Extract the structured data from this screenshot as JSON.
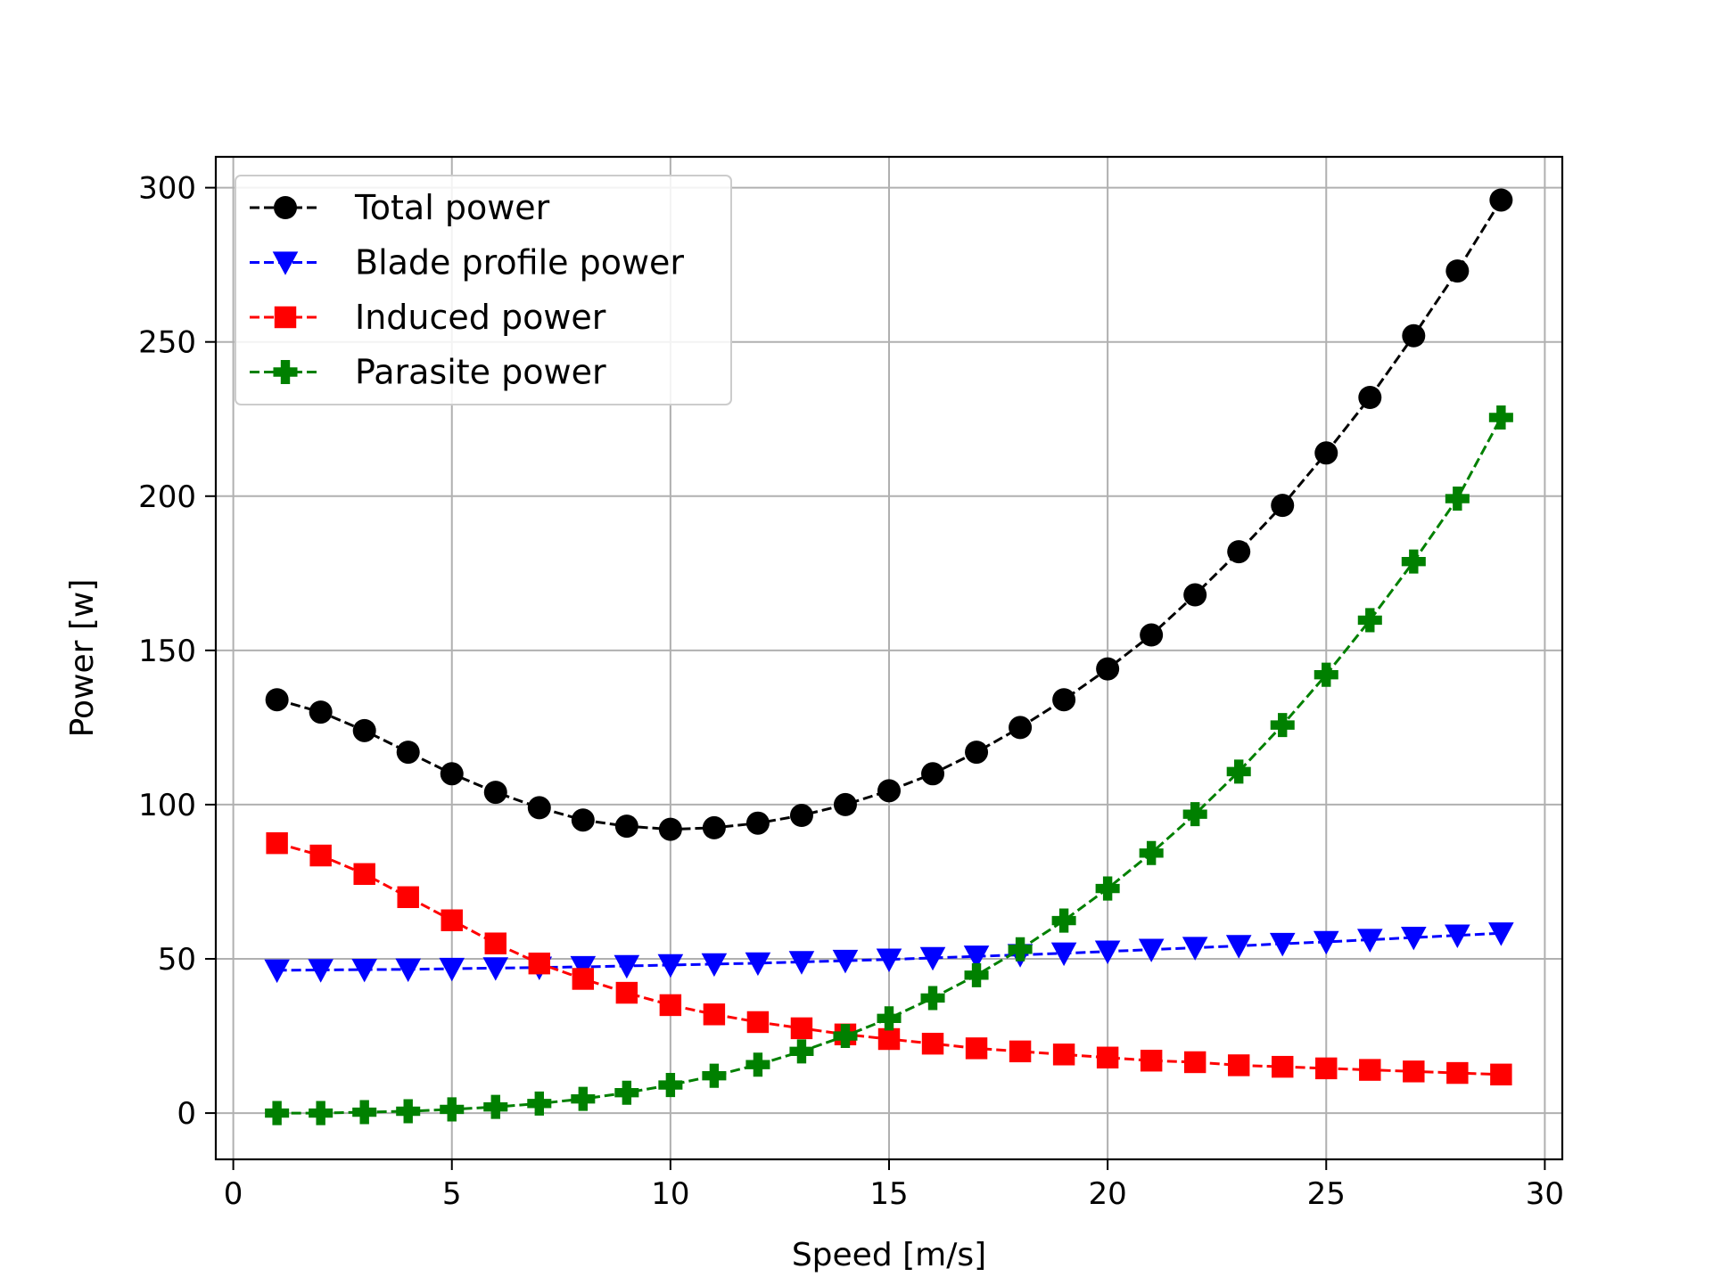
{
  "chart_data": {
    "type": "line",
    "title": "",
    "xlabel": "Speed [m/s]",
    "ylabel": "Power [w]",
    "xlim": [
      -0.4,
      30.4
    ],
    "ylim": [
      -15,
      310
    ],
    "xticks": [
      0,
      5,
      10,
      15,
      20,
      25,
      30
    ],
    "yticks": [
      0,
      50,
      100,
      150,
      200,
      250,
      300
    ],
    "grid": true,
    "legend_position": "top-left",
    "x": [
      1,
      2,
      3,
      4,
      5,
      6,
      7,
      8,
      9,
      10,
      11,
      12,
      13,
      14,
      15,
      16,
      17,
      18,
      19,
      20,
      21,
      22,
      23,
      24,
      25,
      26,
      27,
      28,
      29
    ],
    "series": [
      {
        "name": "Total power",
        "color": "#000000",
        "marker": "circle",
        "values": [
          134,
          130,
          124,
          117,
          110,
          104,
          99,
          95,
          93,
          92,
          92.5,
          94,
          96.5,
          100,
          104.5,
          110,
          117,
          125,
          134,
          144,
          155,
          168,
          182,
          197,
          214,
          232,
          252,
          273,
          296
        ]
      },
      {
        "name": "Blade profile power",
        "color": "#0000ff",
        "marker": "triangle-down",
        "values": [
          46.3,
          46.4,
          46.5,
          46.6,
          46.8,
          47,
          47.2,
          47.4,
          47.7,
          48,
          48.3,
          48.6,
          49,
          49.4,
          49.8,
          50.3,
          50.8,
          51.3,
          51.8,
          52.4,
          53,
          53.6,
          54.2,
          54.9,
          55.5,
          56.2,
          56.9,
          57.6,
          58.3
        ]
      },
      {
        "name": "Induced power",
        "color": "#ff0000",
        "marker": "square",
        "values": [
          87.5,
          83.5,
          77.5,
          70,
          62.5,
          55,
          48.5,
          43.5,
          39,
          35,
          32,
          29.5,
          27.5,
          25.5,
          24,
          22.5,
          21,
          20,
          19,
          18,
          17,
          16.5,
          15.5,
          15,
          14.5,
          14,
          13.5,
          13,
          12.5
        ]
      },
      {
        "name": "Parasite power",
        "color": "#008000",
        "marker": "plus-filled",
        "values": [
          0,
          0,
          0.3,
          0.6,
          1.2,
          2,
          3.1,
          4.6,
          6.6,
          9.1,
          12.1,
          15.7,
          20,
          25,
          30.7,
          37.3,
          44.7,
          53.1,
          62.4,
          72.8,
          84.3,
          96.9,
          110.7,
          125.8,
          142.1,
          159.8,
          178.8,
          199.2,
          225.5
        ]
      }
    ]
  }
}
